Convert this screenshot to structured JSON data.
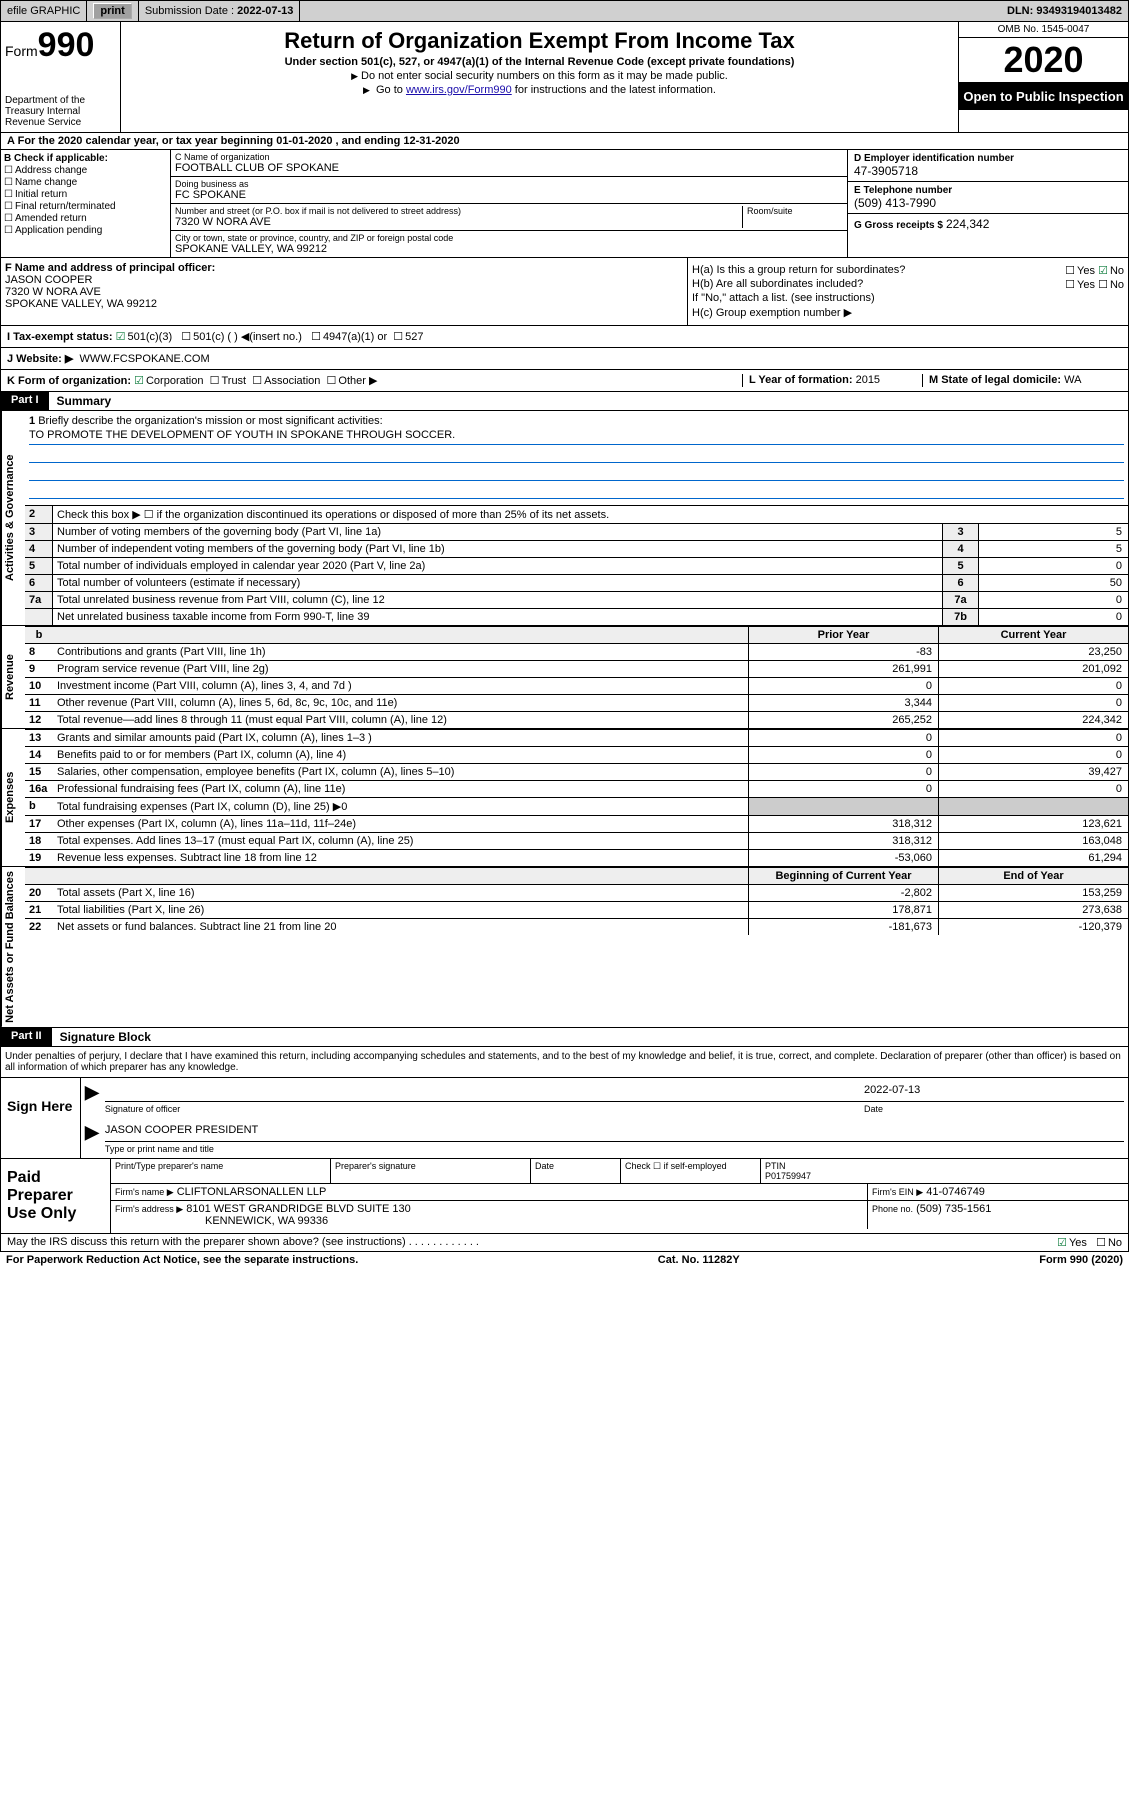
{
  "topbar": {
    "efile": "efile GRAPHIC",
    "print": "print",
    "sub_label": "Submission Date :",
    "sub_date": "2022-07-13",
    "dln": "DLN: 93493194013482"
  },
  "header": {
    "form_word": "Form",
    "form_num": "990",
    "dept": "Department of the Treasury Internal Revenue Service",
    "title": "Return of Organization Exempt From Income Tax",
    "sub1": "Under section 501(c), 527, or 4947(a)(1) of the Internal Revenue Code (except private foundations)",
    "sub2": "Do not enter social security numbers on this form as it may be made public.",
    "sub3_pre": "Go to ",
    "sub3_link": "www.irs.gov/Form990",
    "sub3_post": " for instructions and the latest information.",
    "omb": "OMB No. 1545-0047",
    "year": "2020",
    "inspection": "Open to Public Inspection"
  },
  "tax_year": "For the 2020 calendar year, or tax year beginning 01-01-2020   , and ending 12-31-2020",
  "box_b": {
    "label": "B Check if applicable:",
    "addr": "Address change",
    "name": "Name change",
    "init": "Initial return",
    "final": "Final return/terminated",
    "amend": "Amended return",
    "app": "Application pending"
  },
  "box_c": {
    "name_lbl": "C Name of organization",
    "name": "FOOTBALL CLUB OF SPOKANE",
    "dba_lbl": "Doing business as",
    "dba": "FC SPOKANE",
    "street_lbl": "Number and street (or P.O. box if mail is not delivered to street address)",
    "room_lbl": "Room/suite",
    "street": "7320 W NORA AVE",
    "city_lbl": "City or town, state or province, country, and ZIP or foreign postal code",
    "city": "SPOKANE VALLEY, WA  99212"
  },
  "box_d": {
    "lbl": "D Employer identification number",
    "val": "47-3905718"
  },
  "box_e": {
    "lbl": "E Telephone number",
    "val": "(509) 413-7990"
  },
  "box_g": {
    "lbl": "G Gross receipts $",
    "val": "224,342"
  },
  "box_f": {
    "lbl": "F Name and address of principal officer:",
    "name": "JASON COOPER",
    "street": "7320 W NORA AVE",
    "city": "SPOKANE VALLEY, WA  99212"
  },
  "box_h": {
    "a": "H(a)  Is this a group return for subordinates?",
    "a_yes": "Yes",
    "a_no": "No",
    "b": "H(b)  Are all subordinates included?",
    "b_yes": "Yes",
    "b_no": "No",
    "b_note": "If \"No,\" attach a list. (see instructions)",
    "c": "H(c)  Group exemption number ▶"
  },
  "box_i": {
    "lbl": "I  Tax-exempt status:",
    "o1": "501(c)(3)",
    "o2": "501(c) (  ) ◀(insert no.)",
    "o3": "4947(a)(1) or",
    "o4": "527"
  },
  "box_j": {
    "lbl": "J  Website: ▶",
    "val": "WWW.FCSPOKANE.COM"
  },
  "box_k": {
    "lbl": "K Form of organization:",
    "o1": "Corporation",
    "o2": "Trust",
    "o3": "Association",
    "o4": "Other ▶"
  },
  "box_l": {
    "lbl": "L Year of formation:",
    "val": "2015"
  },
  "box_m": {
    "lbl": "M State of legal domicile:",
    "val": "WA"
  },
  "part1": {
    "tag": "Part I",
    "title": "Summary"
  },
  "mission": {
    "n": "1",
    "lbl": "Briefly describe the organization's mission or most significant activities:",
    "txt": "TO PROMOTE THE DEVELOPMENT OF YOUTH IN SPOKANE THROUGH SOCCER."
  },
  "gov_lines": [
    {
      "n": "2",
      "desc": "Check this box ▶ ☐ if the organization discontinued its operations or disposed of more than 25% of its net assets.",
      "box": "",
      "val": ""
    },
    {
      "n": "3",
      "desc": "Number of voting members of the governing body (Part VI, line 1a)",
      "box": "3",
      "val": "5"
    },
    {
      "n": "4",
      "desc": "Number of independent voting members of the governing body (Part VI, line 1b)",
      "box": "4",
      "val": "5"
    },
    {
      "n": "5",
      "desc": "Total number of individuals employed in calendar year 2020 (Part V, line 2a)",
      "box": "5",
      "val": "0"
    },
    {
      "n": "6",
      "desc": "Total number of volunteers (estimate if necessary)",
      "box": "6",
      "val": "50"
    },
    {
      "n": "7a",
      "desc": "Total unrelated business revenue from Part VIII, column (C), line 12",
      "box": "7a",
      "val": "0"
    },
    {
      "n": "",
      "desc": "Net unrelated business taxable income from Form 990-T, line 39",
      "box": "7b",
      "val": "0"
    }
  ],
  "fin_hdr": {
    "b": "b",
    "prior": "Prior Year",
    "curr": "Current Year"
  },
  "revenue": [
    {
      "n": "8",
      "desc": "Contributions and grants (Part VIII, line 1h)",
      "c1": "-83",
      "c2": "23,250"
    },
    {
      "n": "9",
      "desc": "Program service revenue (Part VIII, line 2g)",
      "c1": "261,991",
      "c2": "201,092"
    },
    {
      "n": "10",
      "desc": "Investment income (Part VIII, column (A), lines 3, 4, and 7d )",
      "c1": "0",
      "c2": "0"
    },
    {
      "n": "11",
      "desc": "Other revenue (Part VIII, column (A), lines 5, 6d, 8c, 9c, 10c, and 11e)",
      "c1": "3,344",
      "c2": "0"
    },
    {
      "n": "12",
      "desc": "Total revenue—add lines 8 through 11 (must equal Part VIII, column (A), line 12)",
      "c1": "265,252",
      "c2": "224,342"
    }
  ],
  "expenses": [
    {
      "n": "13",
      "desc": "Grants and similar amounts paid (Part IX, column (A), lines 1–3 )",
      "c1": "0",
      "c2": "0"
    },
    {
      "n": "14",
      "desc": "Benefits paid to or for members (Part IX, column (A), line 4)",
      "c1": "0",
      "c2": "0"
    },
    {
      "n": "15",
      "desc": "Salaries, other compensation, employee benefits (Part IX, column (A), lines 5–10)",
      "c1": "0",
      "c2": "39,427"
    },
    {
      "n": "16a",
      "desc": "Professional fundraising fees (Part IX, column (A), line 11e)",
      "c1": "0",
      "c2": "0"
    },
    {
      "n": "b",
      "desc": "Total fundraising expenses (Part IX, column (D), line 25) ▶0",
      "c1": "",
      "c2": "",
      "gray": true
    },
    {
      "n": "17",
      "desc": "Other expenses (Part IX, column (A), lines 11a–11d, 11f–24e)",
      "c1": "318,312",
      "c2": "123,621"
    },
    {
      "n": "18",
      "desc": "Total expenses. Add lines 13–17 (must equal Part IX, column (A), line 25)",
      "c1": "318,312",
      "c2": "163,048"
    },
    {
      "n": "19",
      "desc": "Revenue less expenses. Subtract line 18 from line 12",
      "c1": "-53,060",
      "c2": "61,294"
    }
  ],
  "net_hdr": {
    "prior": "Beginning of Current Year",
    "curr": "End of Year"
  },
  "net": [
    {
      "n": "20",
      "desc": "Total assets (Part X, line 16)",
      "c1": "-2,802",
      "c2": "153,259"
    },
    {
      "n": "21",
      "desc": "Total liabilities (Part X, line 26)",
      "c1": "178,871",
      "c2": "273,638"
    },
    {
      "n": "22",
      "desc": "Net assets or fund balances. Subtract line 21 from line 20",
      "c1": "-181,673",
      "c2": "-120,379"
    }
  ],
  "vtabs": {
    "gov": "Activities & Governance",
    "rev": "Revenue",
    "exp": "Expenses",
    "net": "Net Assets or Fund Balances"
  },
  "part2": {
    "tag": "Part II",
    "title": "Signature Block"
  },
  "penalty": "Under penalties of perjury, I declare that I have examined this return, including accompanying schedules and statements, and to the best of my knowledge and belief, it is true, correct, and complete. Declaration of preparer (other than officer) is based on all information of which preparer has any knowledge.",
  "sign": {
    "here": "Sign Here",
    "sig_lbl": "Signature of officer",
    "date_lbl": "Date",
    "date": "2022-07-13",
    "name": "JASON COOPER  PRESIDENT",
    "name_lbl": "Type or print name and title"
  },
  "prep": {
    "title": "Paid Preparer Use Only",
    "h_name": "Print/Type preparer's name",
    "h_sig": "Preparer's signature",
    "h_date": "Date",
    "h_chk": "Check ☐ if self-employed",
    "h_ptin": "PTIN",
    "ptin": "P01759947",
    "firm_lbl": "Firm's name   ▶",
    "firm": "CLIFTONLARSONALLEN LLP",
    "ein_lbl": "Firm's EIN ▶",
    "ein": "41-0746749",
    "addr_lbl": "Firm's address ▶",
    "addr1": "8101 WEST GRANDRIDGE BLVD SUITE 130",
    "addr2": "KENNEWICK, WA  99336",
    "phone_lbl": "Phone no.",
    "phone": "(509) 735-1561"
  },
  "discuss": {
    "q": "May the IRS discuss this return with the preparer shown above? (see instructions)",
    "yes": "Yes",
    "no": "No"
  },
  "footer": {
    "pra": "For Paperwork Reduction Act Notice, see the separate instructions.",
    "cat": "Cat. No. 11282Y",
    "form": "Form 990 (2020)"
  }
}
